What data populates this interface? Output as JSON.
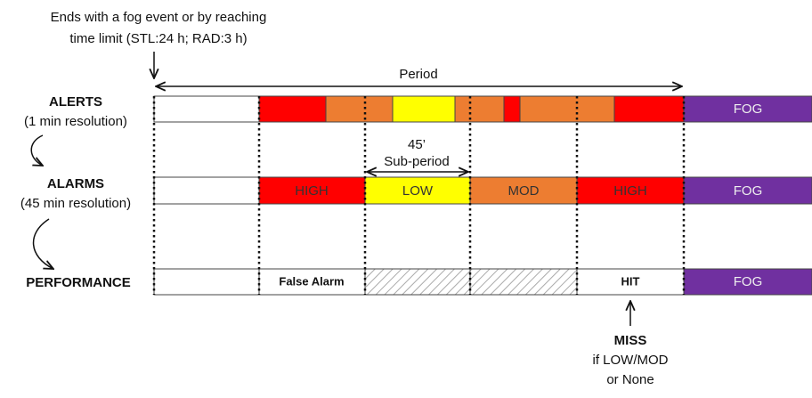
{
  "header": {
    "note_lines": [
      "Ends with a fog event or by reaching",
      "time limit (STL:24 h; RAD:3 h)"
    ]
  },
  "period_label": "Period",
  "subperiod": {
    "lines": [
      "45’",
      "Sub-period"
    ]
  },
  "rows": [
    {
      "name": "ALERTS",
      "resolution": "(1 min resolution)",
      "fog": "FOG"
    },
    {
      "name": "ALARMS",
      "resolution": "(45 min resolution)",
      "segments": [
        "HIGH",
        "LOW",
        "MOD",
        "HIGH"
      ],
      "fog": "FOG"
    },
    {
      "name": "PERFORMANCE",
      "segments": [
        "False Alarm",
        "HIT"
      ],
      "fog": "FOG"
    }
  ],
  "miss_note": [
    "MISS",
    "if LOW/MOD",
    "or None"
  ]
}
